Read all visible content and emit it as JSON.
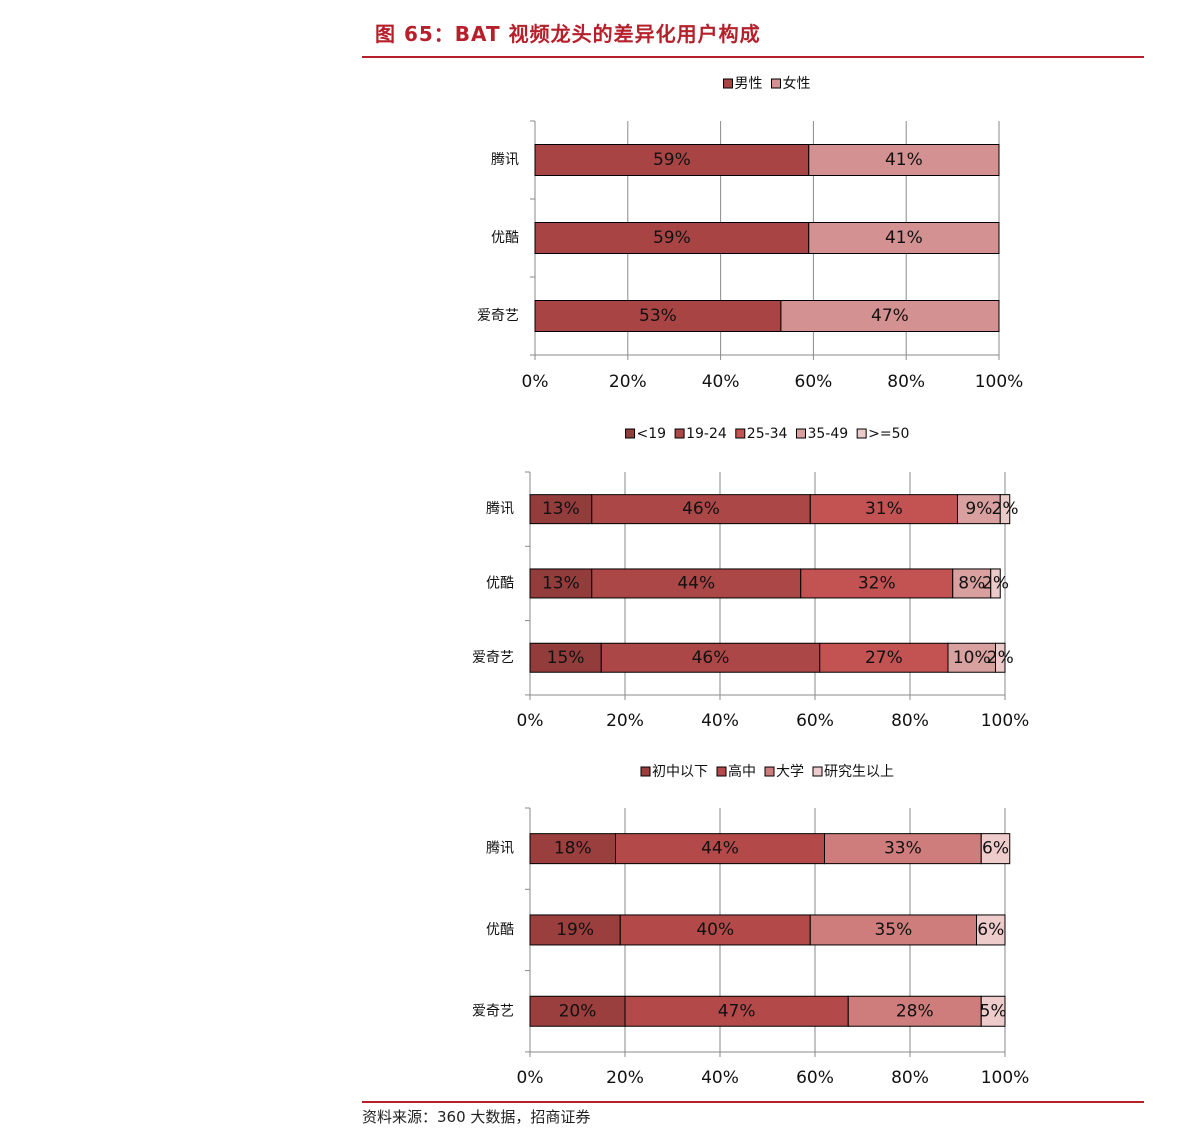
{
  "figure": {
    "title": "图 65：BAT 视频龙头的差异化用户构成",
    "source": "资料来源：360 大数据，招商证券"
  },
  "chart_data": [
    {
      "type": "bar",
      "orientation": "horizontal",
      "stacked": "100%",
      "categories": [
        "腾讯",
        "优酷",
        "爱奇艺"
      ],
      "series": [
        {
          "name": "男性",
          "values": [
            59,
            59,
            53
          ],
          "color": "#a84544"
        },
        {
          "name": "女性",
          "values": [
            41,
            41,
            47
          ],
          "color": "#d39191"
        }
      ],
      "data_labels": [
        [
          "59%",
          "59%",
          "53%"
        ],
        [
          "41%",
          "41%",
          "47%"
        ]
      ],
      "xlim": [
        0,
        100
      ],
      "xticks": [
        "0%",
        "20%",
        "40%",
        "60%",
        "80%",
        "100%"
      ],
      "grid": "vertical",
      "legend": "top-center"
    },
    {
      "type": "bar",
      "orientation": "horizontal",
      "stacked": "100%",
      "categories": [
        "腾讯",
        "优酷",
        "爱奇艺"
      ],
      "series": [
        {
          "name": "<19",
          "values": [
            13,
            13,
            15
          ],
          "color": "#933c3c"
        },
        {
          "name": "19-24",
          "values": [
            46,
            44,
            46
          ],
          "color": "#ab4747"
        },
        {
          "name": "25-34",
          "values": [
            31,
            32,
            27
          ],
          "color": "#c35252"
        },
        {
          "name": "35-49",
          "values": [
            9,
            8,
            10
          ],
          "color": "#d9a0a0"
        },
        {
          "name": ">=50",
          "values": [
            2,
            2,
            2
          ],
          "color": "#ebcaca"
        }
      ],
      "data_labels": [
        [
          "13%",
          "13%",
          "15%"
        ],
        [
          "46%",
          "44%",
          "46%"
        ],
        [
          "31%",
          "32%",
          "27%"
        ],
        [
          "9%",
          "8%",
          "10%"
        ],
        [
          "2%",
          "2%",
          "2%"
        ]
      ],
      "xlim": [
        0,
        100
      ],
      "xticks": [
        "0%",
        "20%",
        "40%",
        "60%",
        "80%",
        "100%"
      ],
      "grid": "vertical",
      "legend": "top-center"
    },
    {
      "type": "bar",
      "orientation": "horizontal",
      "stacked": "100%",
      "categories": [
        "腾讯",
        "优酷",
        "爱奇艺"
      ],
      "series": [
        {
          "name": "初中以下",
          "values": [
            18,
            19,
            20
          ],
          "color": "#9a3e3e"
        },
        {
          "name": "高中",
          "values": [
            44,
            40,
            47
          ],
          "color": "#b44949"
        },
        {
          "name": "大学",
          "values": [
            33,
            35,
            28
          ],
          "color": "#ce7c7c"
        },
        {
          "name": "研究生以上",
          "values": [
            6,
            6,
            5
          ],
          "color": "#efcccc"
        }
      ],
      "data_labels": [
        [
          "18%",
          "19%",
          "20%"
        ],
        [
          "44%",
          "40%",
          "47%"
        ],
        [
          "33%",
          "35%",
          "28%"
        ],
        [
          "6%",
          "6%",
          "5%"
        ]
      ],
      "xlim": [
        0,
        100
      ],
      "xticks": [
        "0%",
        "20%",
        "40%",
        "60%",
        "80%",
        "100%"
      ],
      "grid": "vertical",
      "legend": "top-center"
    }
  ]
}
